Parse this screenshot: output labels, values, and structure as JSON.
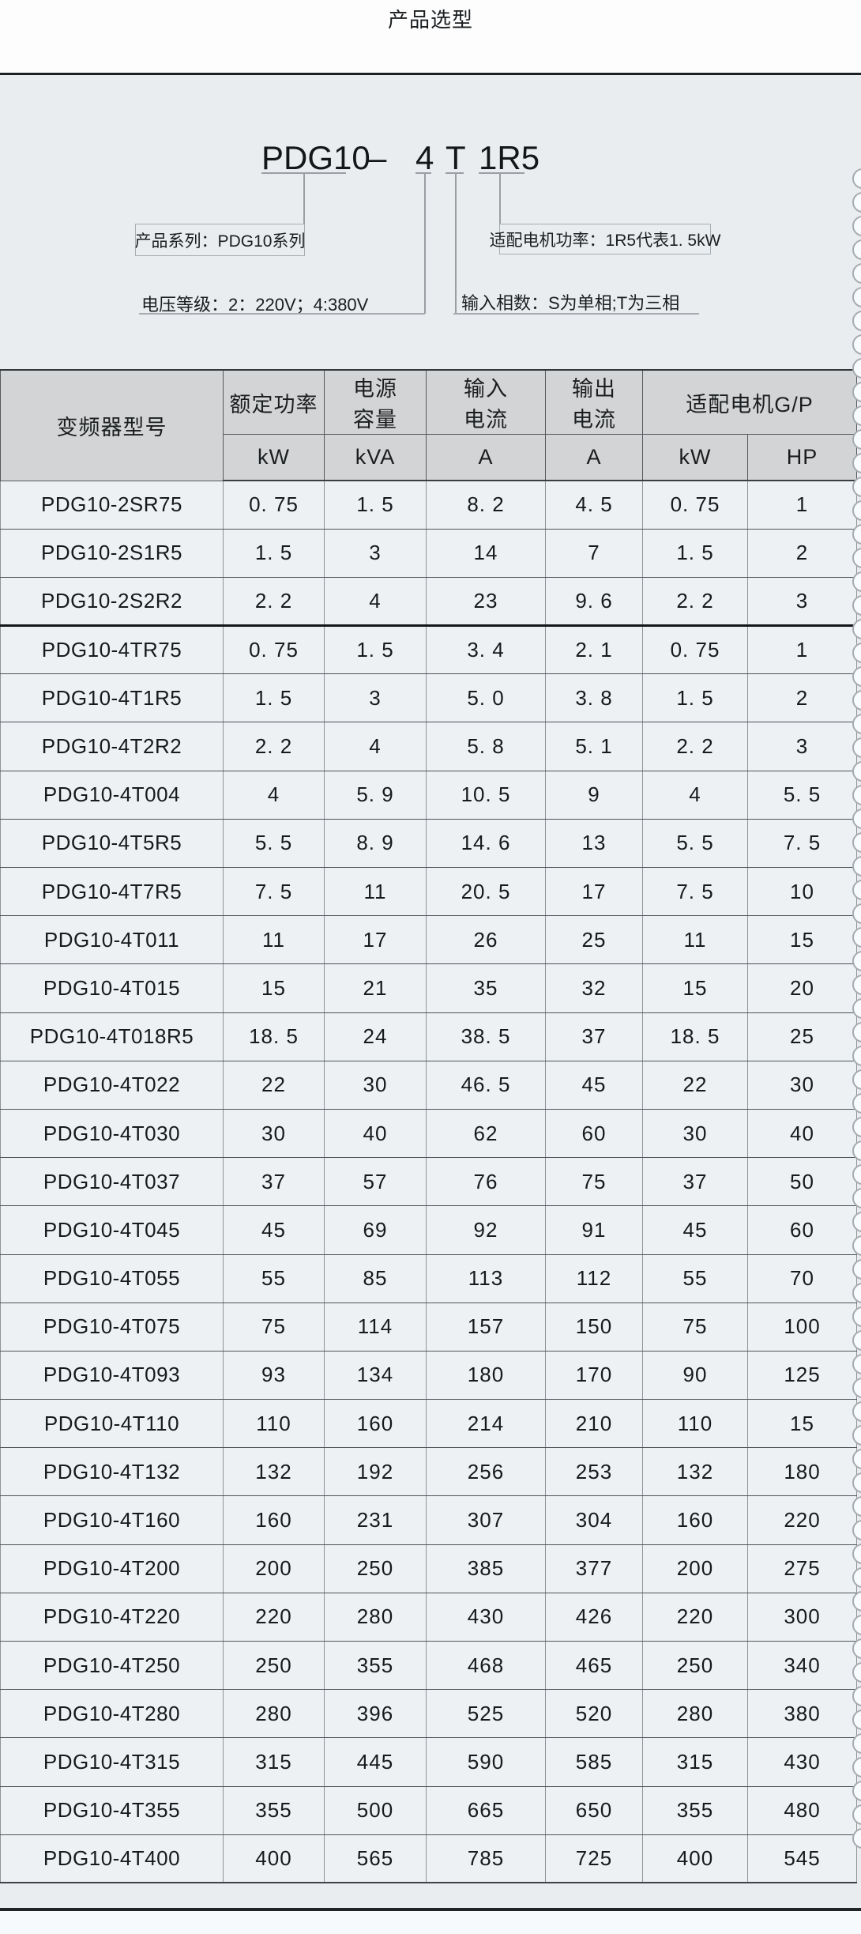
{
  "page": {
    "title": "产品选型"
  },
  "colors": {
    "page_background": "#e9edf0",
    "top_strip": "#fdfdfe",
    "table_cell": "#edf1f4",
    "table_header": "#d3d4d5",
    "rule_dark": "#1d1f21",
    "line_gray": "#9b9fa3"
  },
  "diagram": {
    "model_parts": [
      "PDG10",
      "–",
      "4",
      "T",
      "1R5"
    ],
    "label_series": "产品系列：PDG10系列",
    "label_motor_power": "适配电机功率：1R5代表1. 5kW",
    "label_voltage": "电压等级：2：220V；4:380V",
    "label_phases": "输入相数：S为单相;T为三相"
  },
  "table": {
    "headers": {
      "model": "变频器型号",
      "rated_power": "额定功率",
      "supply_capacity": "电源\n容量",
      "input_current": "输入\n电流",
      "output_current": "输出\n电流",
      "adapted_motor": "适配电机G/P"
    },
    "units": [
      "kW",
      "kVA",
      "A",
      "A",
      "kW",
      "HP"
    ],
    "group_break_after": "PDG10-2S2R2",
    "rows": [
      [
        "PDG10-2SR75",
        "0. 75",
        "1. 5",
        "8. 2",
        "4. 5",
        "0. 75",
        "1"
      ],
      [
        "PDG10-2S1R5",
        "1. 5",
        "3",
        "14",
        "7",
        "1. 5",
        "2"
      ],
      [
        "PDG10-2S2R2",
        "2. 2",
        "4",
        "23",
        "9. 6",
        "2. 2",
        "3"
      ],
      [
        "PDG10-4TR75",
        "0. 75",
        "1. 5",
        "3. 4",
        "2. 1",
        "0. 75",
        "1"
      ],
      [
        "PDG10-4T1R5",
        "1. 5",
        "3",
        "5. 0",
        "3. 8",
        "1. 5",
        "2"
      ],
      [
        "PDG10-4T2R2",
        "2. 2",
        "4",
        "5. 8",
        "5. 1",
        "2. 2",
        "3"
      ],
      [
        "PDG10-4T004",
        "4",
        "5. 9",
        "10. 5",
        "9",
        "4",
        "5. 5"
      ],
      [
        "PDG10-4T5R5",
        "5. 5",
        "8. 9",
        "14. 6",
        "13",
        "5. 5",
        "7. 5"
      ],
      [
        "PDG10-4T7R5",
        "7. 5",
        "11",
        "20. 5",
        "17",
        "7. 5",
        "10"
      ],
      [
        "PDG10-4T011",
        "11",
        "17",
        "26",
        "25",
        "11",
        "15"
      ],
      [
        "PDG10-4T015",
        "15",
        "21",
        "35",
        "32",
        "15",
        "20"
      ],
      [
        "PDG10-4T018R5",
        "18. 5",
        "24",
        "38. 5",
        "37",
        "18. 5",
        "25"
      ],
      [
        "PDG10-4T022",
        "22",
        "30",
        "46. 5",
        "45",
        "22",
        "30"
      ],
      [
        "PDG10-4T030",
        "30",
        "40",
        "62",
        "60",
        "30",
        "40"
      ],
      [
        "PDG10-4T037",
        "37",
        "57",
        "76",
        "75",
        "37",
        "50"
      ],
      [
        "PDG10-4T045",
        "45",
        "69",
        "92",
        "91",
        "45",
        "60"
      ],
      [
        "PDG10-4T055",
        "55",
        "85",
        "113",
        "112",
        "55",
        "70"
      ],
      [
        "PDG10-4T075",
        "75",
        "114",
        "157",
        "150",
        "75",
        "100"
      ],
      [
        "PDG10-4T093",
        "93",
        "134",
        "180",
        "170",
        "90",
        "125"
      ],
      [
        "PDG10-4T110",
        "110",
        "160",
        "214",
        "210",
        "110",
        "15"
      ],
      [
        "PDG10-4T132",
        "132",
        "192",
        "256",
        "253",
        "132",
        "180"
      ],
      [
        "PDG10-4T160",
        "160",
        "231",
        "307",
        "304",
        "160",
        "220"
      ],
      [
        "PDG10-4T200",
        "200",
        "250",
        "385",
        "377",
        "200",
        "275"
      ],
      [
        "PDG10-4T220",
        "220",
        "280",
        "430",
        "426",
        "220",
        "300"
      ],
      [
        "PDG10-4T250",
        "250",
        "355",
        "468",
        "465",
        "250",
        "340"
      ],
      [
        "PDG10-4T280",
        "280",
        "396",
        "525",
        "520",
        "280",
        "380"
      ],
      [
        "PDG10-4T315",
        "315",
        "445",
        "590",
        "585",
        "315",
        "430"
      ],
      [
        "PDG10-4T355",
        "355",
        "500",
        "665",
        "650",
        "355",
        "480"
      ],
      [
        "PDG10-4T400",
        "400",
        "565",
        "785",
        "725",
        "400",
        "545"
      ]
    ]
  }
}
